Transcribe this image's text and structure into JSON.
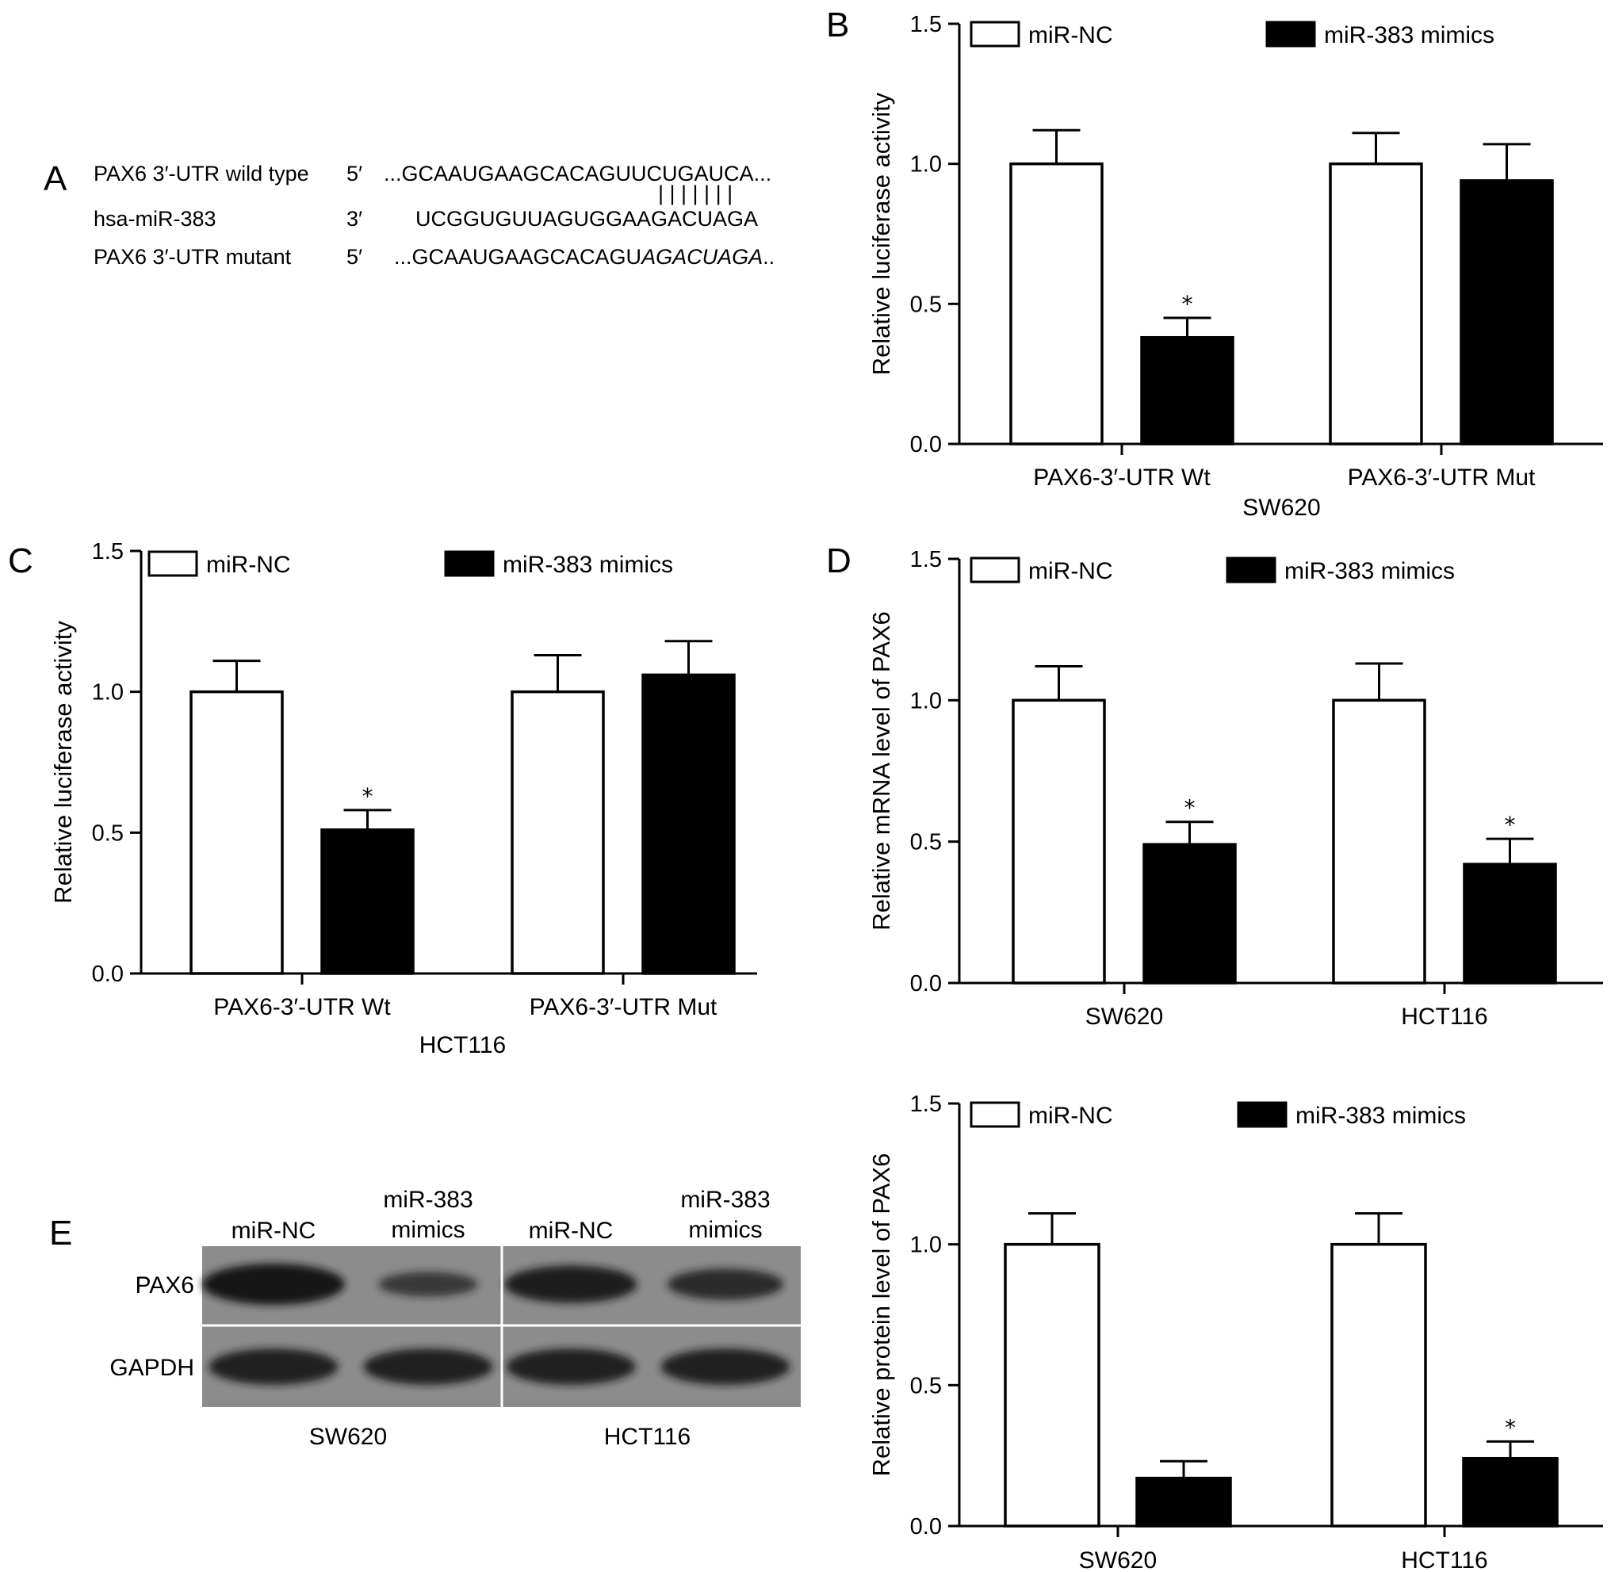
{
  "panel_letters": [
    "A",
    "B",
    "C",
    "D",
    "E"
  ],
  "sequence_alignment": {
    "rows": [
      {
        "label": "PAX6 3′-UTR wild type",
        "end": "5′",
        "seq": "...GCAAUGAAGCACAGUUCUGAUCA..."
      },
      {
        "label": "hsa-miR-383",
        "end": "3′",
        "seq": "UCGGUGUUAGUGGAAGACUAGA"
      },
      {
        "label": "PAX6 3′-UTR mutant",
        "end": "5′",
        "seq_plain": "...GCAAUGAAGCACAGU",
        "seq_italic": "AGACUAGA",
        "seq_tail": ".."
      }
    ],
    "pairing": "| | | | | | |"
  },
  "chart_data": [
    {
      "id": "B",
      "type": "bar",
      "categories": [
        "PAX6-3′-UTR Wt",
        "PAX6-3′-UTR Mut"
      ],
      "group_label": "SW620",
      "ylabel": "Relative luciferase activity",
      "ylim": [
        0,
        1.5
      ],
      "yticks": [
        "0.0",
        "0.5",
        "1.0",
        "1.5"
      ],
      "series": [
        {
          "name": "miR-NC",
          "values": [
            1.0,
            1.0
          ],
          "errors": [
            0.12,
            0.11
          ],
          "sig": [
            "",
            ""
          ]
        },
        {
          "name": "miR-383 mimics",
          "values": [
            0.38,
            0.94
          ],
          "errors": [
            0.07,
            0.13
          ],
          "sig": [
            "*",
            ""
          ]
        }
      ]
    },
    {
      "id": "C",
      "type": "bar",
      "categories": [
        "PAX6-3′-UTR Wt",
        "PAX6-3′-UTR Mut"
      ],
      "group_label": "HCT116",
      "ylabel": "Relative luciferase activity",
      "ylim": [
        0,
        1.5
      ],
      "yticks": [
        "0.0",
        "0.5",
        "1.0",
        "1.5"
      ],
      "series": [
        {
          "name": "miR-NC",
          "values": [
            1.0,
            1.0
          ],
          "errors": [
            0.11,
            0.13
          ],
          "sig": [
            "",
            ""
          ]
        },
        {
          "name": "miR-383 mimics",
          "values": [
            0.51,
            1.06
          ],
          "errors": [
            0.07,
            0.12
          ],
          "sig": [
            "*",
            ""
          ]
        }
      ]
    },
    {
      "id": "D",
      "type": "bar",
      "categories": [
        "SW620",
        "HCT116"
      ],
      "group_label": "",
      "ylabel": "Relative mRNA level of PAX6",
      "ylim": [
        0,
        1.5
      ],
      "yticks": [
        "0.0",
        "0.5",
        "1.0",
        "1.5"
      ],
      "series": [
        {
          "name": "miR-NC",
          "values": [
            1.0,
            1.0
          ],
          "errors": [
            0.12,
            0.13
          ],
          "sig": [
            "",
            ""
          ]
        },
        {
          "name": "miR-383 mimics",
          "values": [
            0.49,
            0.42
          ],
          "errors": [
            0.08,
            0.09
          ],
          "sig": [
            "*",
            "*"
          ]
        }
      ]
    },
    {
      "id": "E2",
      "type": "bar",
      "categories": [
        "SW620",
        "HCT116"
      ],
      "group_label": "",
      "ylabel": "Relative protein level of PAX6",
      "ylim": [
        0,
        1.5
      ],
      "yticks": [
        "0.0",
        "0.5",
        "1.0",
        "1.5"
      ],
      "series": [
        {
          "name": "miR-NC",
          "values": [
            1.0,
            1.0
          ],
          "errors": [
            0.11,
            0.11
          ],
          "sig": [
            "",
            ""
          ]
        },
        {
          "name": "miR-383 mimics",
          "values": [
            0.17,
            0.24
          ],
          "errors": [
            0.06,
            0.06
          ],
          "sig": [
            "",
            "*"
          ]
        }
      ]
    }
  ],
  "western_blot": {
    "lanes": [
      "miR-NC",
      "miR-383 mimics",
      "miR-NC",
      "miR-383 mimics"
    ],
    "lane_lines": [
      [
        "miR-NC"
      ],
      [
        "miR-383",
        "mimics"
      ],
      [
        "miR-NC"
      ],
      [
        "miR-383",
        "mimics"
      ]
    ],
    "proteins": [
      "PAX6",
      "GAPDH"
    ],
    "groups": [
      "SW620",
      "HCT116"
    ],
    "band_intensity": {
      "PAX6": [
        1.0,
        0.35,
        0.85,
        0.6
      ],
      "GAPDH": [
        0.8,
        0.8,
        0.8,
        0.8
      ]
    },
    "colors": {
      "membrane": "#8c8c8c",
      "band": "#141414"
    }
  },
  "colors": {
    "miR-NC": "#ffffff",
    "miR-383 mimics": "#000000",
    "axis": "#000000"
  }
}
